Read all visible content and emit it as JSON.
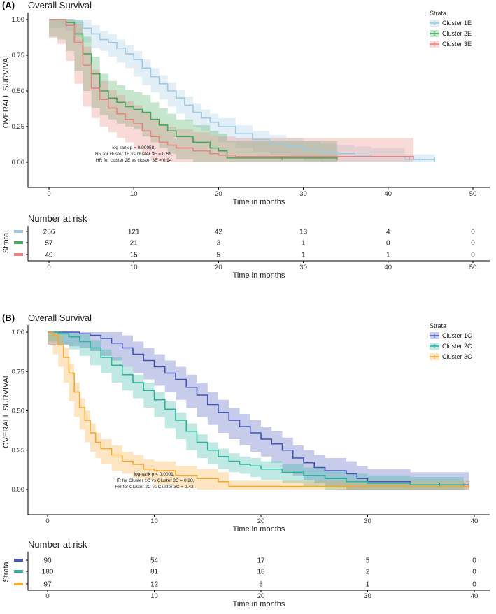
{
  "chart_data": [
    {
      "type": "line",
      "panel": "(A)",
      "title": "Overall Survival",
      "xlabel": "Time in months",
      "ylabel": "OVERALL SURVIVAL",
      "xlim": [
        0,
        50
      ],
      "ylim": [
        0,
        1
      ],
      "xticks": [
        "0",
        "10",
        "20",
        "30",
        "40",
        "50"
      ],
      "yticks": [
        "0.00",
        "0.25",
        "0.50",
        "0.75",
        "1.00"
      ],
      "legend_title": "Strata",
      "annotation": [
        "log-rank p = 0.00058,",
        "HR for cluster 1E vs cluster 3E = 0.61,",
        "HR for cluster 2E vs cluster 3E = 0.94"
      ],
      "series": [
        {
          "name": "Cluster 1E",
          "color": "#9ecae1",
          "band": 0.06,
          "points": [
            [
              0,
              1
            ],
            [
              2,
              1
            ],
            [
              3,
              0.98
            ],
            [
              4,
              0.94
            ],
            [
              5,
              0.9
            ],
            [
              6,
              0.86
            ],
            [
              7,
              0.84
            ],
            [
              8,
              0.8
            ],
            [
              9,
              0.76
            ],
            [
              10,
              0.72
            ],
            [
              11,
              0.66
            ],
            [
              12,
              0.6
            ],
            [
              13,
              0.55
            ],
            [
              14,
              0.5
            ],
            [
              15,
              0.45
            ],
            [
              16,
              0.4
            ],
            [
              17,
              0.35
            ],
            [
              18,
              0.31
            ],
            [
              19,
              0.28
            ],
            [
              20,
              0.25
            ],
            [
              22,
              0.2
            ],
            [
              24,
              0.16
            ],
            [
              26,
              0.13
            ],
            [
              28,
              0.11
            ],
            [
              30,
              0.09
            ],
            [
              32,
              0.07
            ],
            [
              34,
              0.06
            ],
            [
              36,
              0.05
            ],
            [
              38,
              0.04
            ],
            [
              40,
              0.04
            ],
            [
              42,
              0.02
            ],
            [
              45.5,
              0.02
            ]
          ]
        },
        {
          "name": "Cluster 2E",
          "color": "#41ab5d",
          "band": 0.12,
          "points": [
            [
              0,
              1
            ],
            [
              1,
              1
            ],
            [
              2,
              0.98
            ],
            [
              3,
              0.9
            ],
            [
              4,
              0.76
            ],
            [
              5,
              0.62
            ],
            [
              6,
              0.5
            ],
            [
              7,
              0.45
            ],
            [
              8,
              0.42
            ],
            [
              9,
              0.39
            ],
            [
              10,
              0.37
            ],
            [
              11,
              0.35
            ],
            [
              12,
              0.3
            ],
            [
              13,
              0.26
            ],
            [
              14,
              0.22
            ],
            [
              15,
              0.18
            ],
            [
              17,
              0.14
            ],
            [
              19,
              0.1
            ],
            [
              20,
              0.08
            ],
            [
              21,
              0.03
            ],
            [
              34,
              0.03
            ]
          ]
        },
        {
          "name": "Cluster 3E",
          "color": "#e9837f",
          "band": 0.13,
          "points": [
            [
              0,
              1
            ],
            [
              1,
              1
            ],
            [
              2,
              0.96
            ],
            [
              3,
              0.84
            ],
            [
              4,
              0.68
            ],
            [
              5,
              0.52
            ],
            [
              6,
              0.44
            ],
            [
              7,
              0.38
            ],
            [
              8,
              0.34
            ],
            [
              9,
              0.3
            ],
            [
              10,
              0.27
            ],
            [
              11,
              0.22
            ],
            [
              12,
              0.18
            ],
            [
              13,
              0.14
            ],
            [
              14,
              0.12
            ],
            [
              15,
              0.1
            ],
            [
              17,
              0.08
            ],
            [
              19,
              0.06
            ],
            [
              20,
              0.05
            ],
            [
              22,
              0.04
            ],
            [
              42,
              0.04
            ],
            [
              43,
              0.03
            ]
          ]
        }
      ],
      "risk_table": {
        "title": "Number at risk",
        "ylabel": "Strata",
        "xlabel": "Time in months",
        "times": [
          "0",
          "10",
          "20",
          "30",
          "40",
          "50"
        ],
        "rows": [
          {
            "color": "#9ecae1",
            "values": [
              "256",
              "121",
              "42",
              "13",
              "4",
              "0"
            ]
          },
          {
            "color": "#41ab5d",
            "values": [
              "57",
              "21",
              "3",
              "1",
              "0",
              "0"
            ]
          },
          {
            "color": "#e9837f",
            "values": [
              "49",
              "15",
              "5",
              "1",
              "1",
              "0"
            ]
          }
        ]
      }
    },
    {
      "type": "line",
      "panel": "(B)",
      "title": "Overall Survival",
      "xlabel": "Time in months",
      "ylabel": "OVERALL SURVIVAL",
      "xlim": [
        0,
        40
      ],
      "ylim": [
        0,
        1
      ],
      "xticks": [
        "0",
        "10",
        "20",
        "30",
        "40"
      ],
      "yticks": [
        "0.00",
        "0.25",
        "0.50",
        "0.75",
        "1.00"
      ],
      "legend_title": "Strata",
      "annotation": [
        "log-rank p < 0.0001,",
        "HR for Cluster 1C vs Cluster 3C = 0.28,",
        "HR for Cluster 2C vs Cluster 3C = 0.42"
      ],
      "series": [
        {
          "name": "Cluster 1C",
          "color": "#4456b8",
          "band": 0.08,
          "points": [
            [
              0,
              1
            ],
            [
              2,
              1
            ],
            [
              3,
              0.99
            ],
            [
              4,
              0.98
            ],
            [
              5,
              0.96
            ],
            [
              6,
              0.93
            ],
            [
              7,
              0.9
            ],
            [
              8,
              0.86
            ],
            [
              9,
              0.82
            ],
            [
              10,
              0.78
            ],
            [
              11,
              0.74
            ],
            [
              12,
              0.7
            ],
            [
              13,
              0.65
            ],
            [
              14,
              0.6
            ],
            [
              15,
              0.54
            ],
            [
              16,
              0.49
            ],
            [
              17,
              0.44
            ],
            [
              18,
              0.4
            ],
            [
              19,
              0.36
            ],
            [
              20,
              0.32
            ],
            [
              21,
              0.29
            ],
            [
              22,
              0.25
            ],
            [
              23,
              0.2
            ],
            [
              24,
              0.17
            ],
            [
              25,
              0.14
            ],
            [
              26,
              0.12
            ],
            [
              28,
              0.1
            ],
            [
              29,
              0.07
            ],
            [
              30,
              0.05
            ],
            [
              33,
              0.05
            ],
            [
              34,
              0.03
            ],
            [
              39.5,
              0.03
            ]
          ]
        },
        {
          "name": "Cluster 2C",
          "color": "#2ab59e",
          "band": 0.05,
          "points": [
            [
              0,
              1
            ],
            [
              1,
              0.99
            ],
            [
              2,
              0.97
            ],
            [
              3,
              0.94
            ],
            [
              4,
              0.9
            ],
            [
              5,
              0.84
            ],
            [
              6,
              0.79
            ],
            [
              7,
              0.73
            ],
            [
              8,
              0.68
            ],
            [
              9,
              0.63
            ],
            [
              10,
              0.57
            ],
            [
              11,
              0.51
            ],
            [
              12,
              0.44
            ],
            [
              13,
              0.37
            ],
            [
              14,
              0.3
            ],
            [
              15,
              0.25
            ],
            [
              16,
              0.21
            ],
            [
              17,
              0.18
            ],
            [
              18,
              0.16
            ],
            [
              19,
              0.15
            ],
            [
              20,
              0.13
            ],
            [
              22,
              0.11
            ],
            [
              24,
              0.09
            ],
            [
              26,
              0.07
            ],
            [
              28,
              0.05
            ],
            [
              30,
              0.04
            ],
            [
              34,
              0.03
            ],
            [
              39,
              0.03
            ]
          ]
        },
        {
          "name": "Cluster 3C",
          "color": "#f5a830",
          "band": 0.06,
          "points": [
            [
              0,
              1
            ],
            [
              0.5,
              0.98
            ],
            [
              1,
              0.92
            ],
            [
              1.5,
              0.84
            ],
            [
              2,
              0.74
            ],
            [
              2.5,
              0.62
            ],
            [
              3,
              0.52
            ],
            [
              3.5,
              0.44
            ],
            [
              4,
              0.36
            ],
            [
              4.5,
              0.3
            ],
            [
              5,
              0.26
            ],
            [
              6,
              0.22
            ],
            [
              7,
              0.18
            ],
            [
              8,
              0.16
            ],
            [
              9,
              0.13
            ],
            [
              10,
              0.12
            ],
            [
              12,
              0.09
            ],
            [
              14,
              0.07
            ],
            [
              16,
              0.05
            ],
            [
              17,
              0.02
            ],
            [
              39.5,
              0.02
            ]
          ]
        }
      ],
      "risk_table": {
        "title": "Number at risk",
        "ylabel": "Strata",
        "xlabel": "Time in months",
        "times": [
          "0",
          "10",
          "20",
          "30",
          "40"
        ],
        "rows": [
          {
            "color": "#4456b8",
            "values": [
              "90",
              "54",
              "17",
              "5",
              "0"
            ]
          },
          {
            "color": "#2ab59e",
            "values": [
              "180",
              "81",
              "18",
              "2",
              "0"
            ]
          },
          {
            "color": "#f5a830",
            "values": [
              "97",
              "12",
              "3",
              "1",
              "0"
            ]
          }
        ]
      }
    }
  ]
}
